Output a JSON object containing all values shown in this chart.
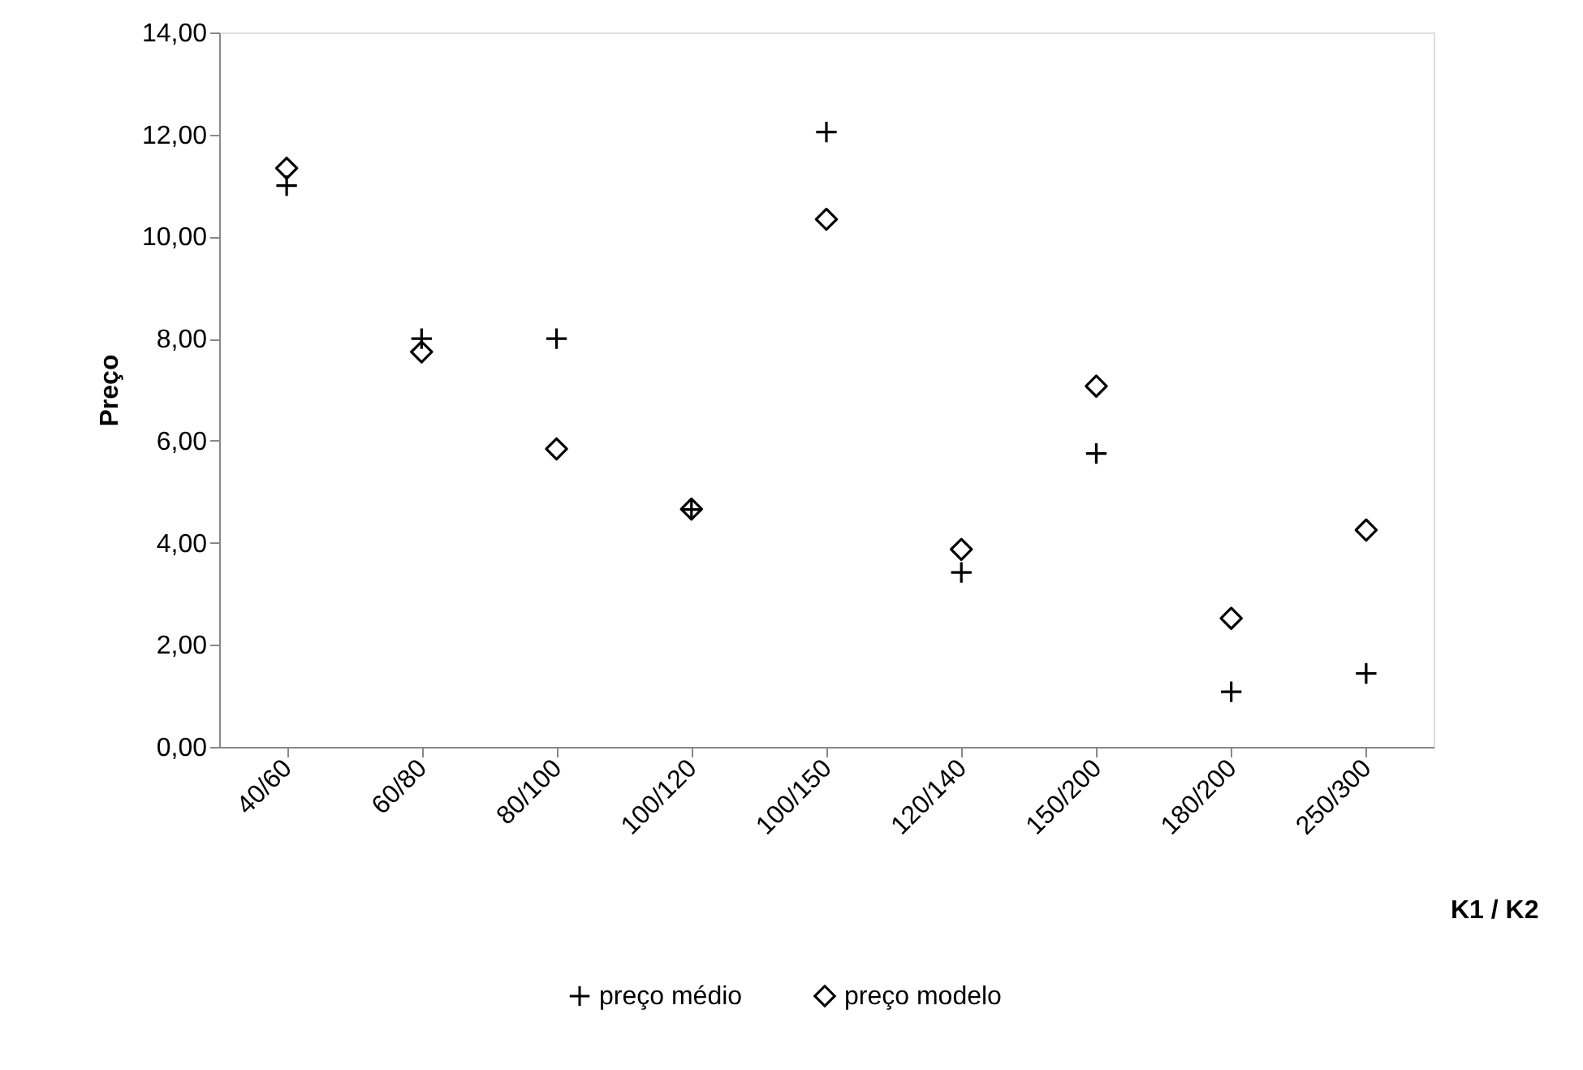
{
  "chart_data": {
    "type": "scatter",
    "xlabel": "K1 / K2",
    "ylabel": "Preço",
    "categories": [
      "40/60",
      "60/80",
      "80/100",
      "100/120",
      "100/150",
      "120/140",
      "150/200",
      "180/200",
      "250/300"
    ],
    "series": [
      {
        "name": "preço médio",
        "color": "#000000",
        "marker": "cross",
        "values": [
          11.0,
          8.0,
          8.0,
          4.65,
          12.05,
          3.42,
          5.75,
          1.08,
          1.44
        ]
      },
      {
        "name": "preço modelo",
        "color": "#000000",
        "marker": "diamond",
        "values": [
          11.34,
          7.74,
          5.84,
          4.66,
          10.34,
          3.87,
          7.07,
          2.52,
          4.25
        ]
      }
    ],
    "ylim": [
      0,
      14
    ],
    "yticks": [
      {
        "value": 0,
        "label": "0,00"
      },
      {
        "value": 2,
        "label": "2,00"
      },
      {
        "value": 4,
        "label": "4,00"
      },
      {
        "value": 6,
        "label": "6,00"
      },
      {
        "value": 8,
        "label": "8,00"
      },
      {
        "value": 10,
        "label": "10,00"
      },
      {
        "value": 12,
        "label": "12,00"
      },
      {
        "value": 14,
        "label": "14,00"
      }
    ],
    "grid": false,
    "legend": "bottom"
  }
}
